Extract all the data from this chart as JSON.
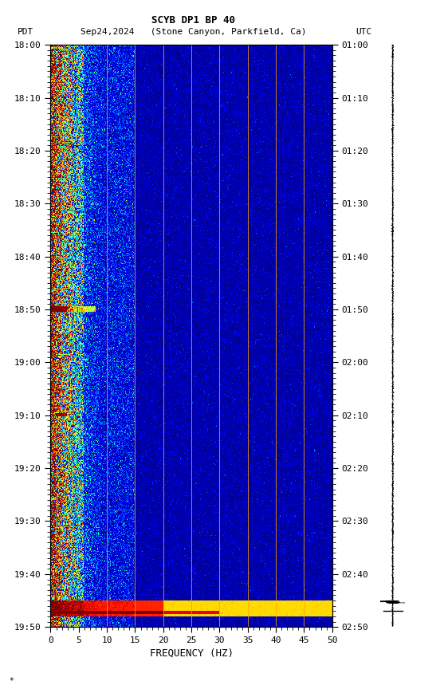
{
  "title_line1": "SCYB DP1 BP 40",
  "title_line2": "PDT   Sep24,2024   (Stone Canyon, Parkfield, Ca)          UTC",
  "xlabel": "FREQUENCY (HZ)",
  "freq_min": 0,
  "freq_max": 50,
  "ytick_pdt": [
    "18:00",
    "18:10",
    "18:20",
    "18:30",
    "18:40",
    "18:50",
    "19:00",
    "19:10",
    "19:20",
    "19:30",
    "19:40",
    "19:50"
  ],
  "ytick_utc": [
    "01:00",
    "01:10",
    "01:20",
    "01:30",
    "01:40",
    "01:50",
    "02:00",
    "02:10",
    "02:20",
    "02:30",
    "02:40",
    "02:50"
  ],
  "xticks": [
    0,
    5,
    10,
    15,
    20,
    25,
    30,
    35,
    40,
    45,
    50
  ],
  "vertical_lines_freq": [
    10,
    15,
    20,
    25,
    30,
    35,
    40,
    45
  ],
  "bg_color": "white",
  "colormap": "jet",
  "title_fontsize": 9,
  "label_fontsize": 9,
  "tick_fontsize": 8,
  "n_time": 660,
  "n_freq": 500,
  "seed": 42
}
